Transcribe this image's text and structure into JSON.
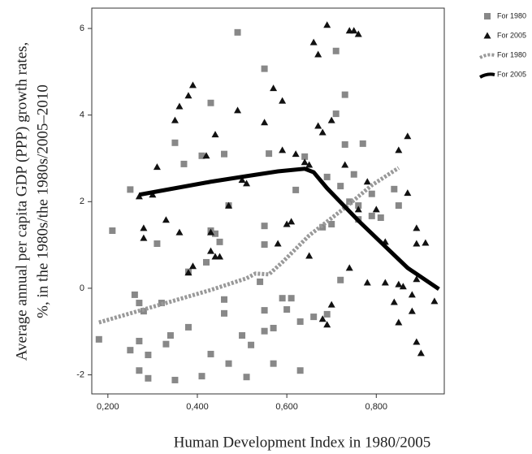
{
  "chart_data": {
    "type": "scatter",
    "x_label": "Human Development Index in 1980/2005",
    "y_label": [
      "Average annual per capita GDP (PPP) growth rates,",
      "%, in the 1980s/the 1980s/2005–2010"
    ],
    "xlim": [
      0.164,
      0.952
    ],
    "ylim": [
      -2.44,
      6.47
    ],
    "xticks": [
      {
        "value": 0.2,
        "label": "0,200"
      },
      {
        "value": 0.4,
        "label": "0,400"
      },
      {
        "value": 0.6,
        "label": "0,600"
      },
      {
        "value": 0.8,
        "label": "0,800"
      }
    ],
    "yticks": [
      -2,
      0,
      2,
      4,
      6
    ],
    "series": [
      {
        "name": "For 1980",
        "kind": "points",
        "marker": "square",
        "color": "#888888",
        "x": [
          0.18,
          0.21,
          0.25,
          0.26,
          0.25,
          0.27,
          0.27,
          0.27,
          0.28,
          0.29,
          0.29,
          0.31,
          0.32,
          0.33,
          0.34,
          0.35,
          0.35,
          0.37,
          0.38,
          0.38,
          0.41,
          0.41,
          0.42,
          0.43,
          0.43,
          0.43,
          0.44,
          0.45,
          0.46,
          0.46,
          0.46,
          0.47,
          0.47,
          0.5,
          0.49,
          0.51,
          0.52,
          0.54,
          0.55,
          0.55,
          0.55,
          0.55,
          0.55,
          0.56,
          0.57,
          0.57,
          0.59,
          0.6,
          0.61,
          0.62,
          0.63,
          0.63,
          0.64,
          0.66,
          0.69,
          0.69,
          0.71,
          0.71,
          0.72,
          0.72,
          0.73,
          0.73,
          0.74,
          0.75,
          0.76,
          0.76,
          0.77,
          0.79,
          0.79,
          0.81,
          0.84,
          0.85,
          0.68,
          0.7
        ],
        "values": [
          -1.18,
          1.33,
          2.28,
          -0.15,
          -1.43,
          -0.34,
          -1.22,
          -1.9,
          -0.53,
          -1.54,
          -2.08,
          1.03,
          -0.34,
          -1.29,
          -1.09,
          3.36,
          -2.12,
          2.87,
          0.38,
          -0.9,
          -2.03,
          3.06,
          0.6,
          1.33,
          4.28,
          -1.52,
          1.26,
          1.07,
          -0.58,
          -0.26,
          3.1,
          1.91,
          -1.74,
          -1.09,
          5.91,
          -2.05,
          -1.31,
          0.15,
          -0.99,
          5.07,
          1.44,
          -0.51,
          1.01,
          3.11,
          -0.92,
          -1.74,
          -0.23,
          -0.49,
          -0.23,
          2.27,
          -1.9,
          -0.77,
          3.04,
          -0.66,
          -0.6,
          2.57,
          4.03,
          5.48,
          2.36,
          0.19,
          4.47,
          3.32,
          2.0,
          2.63,
          1.91,
          1.59,
          3.34,
          2.18,
          1.67,
          1.63,
          2.29,
          1.91,
          1.41,
          1.48
        ]
      },
      {
        "name": "For 2005",
        "kind": "points",
        "marker": "triangle",
        "color": "#111111",
        "x": [
          0.27,
          0.28,
          0.28,
          0.3,
          0.31,
          0.33,
          0.35,
          0.36,
          0.36,
          0.38,
          0.38,
          0.39,
          0.39,
          0.42,
          0.43,
          0.43,
          0.44,
          0.44,
          0.45,
          0.47,
          0.49,
          0.5,
          0.51,
          0.55,
          0.57,
          0.58,
          0.59,
          0.59,
          0.6,
          0.61,
          0.62,
          0.64,
          0.65,
          0.65,
          0.66,
          0.67,
          0.67,
          0.68,
          0.68,
          0.69,
          0.69,
          0.7,
          0.7,
          0.73,
          0.74,
          0.74,
          0.75,
          0.76,
          0.76,
          0.78,
          0.78,
          0.8,
          0.82,
          0.82,
          0.84,
          0.85,
          0.85,
          0.85,
          0.86,
          0.87,
          0.87,
          0.88,
          0.88,
          0.89,
          0.89,
          0.89,
          0.89,
          0.9,
          0.91,
          0.93
        ],
        "values": [
          2.12,
          1.39,
          1.16,
          2.16,
          2.8,
          1.58,
          3.88,
          4.2,
          1.29,
          0.36,
          4.45,
          4.69,
          0.51,
          3.06,
          0.86,
          1.29,
          3.55,
          0.73,
          0.73,
          1.91,
          4.11,
          2.5,
          2.42,
          3.83,
          4.62,
          1.03,
          3.19,
          4.33,
          1.48,
          1.54,
          3.1,
          2.91,
          0.75,
          2.85,
          5.68,
          5.4,
          3.75,
          3.6,
          -0.71,
          -0.84,
          6.08,
          3.88,
          -0.38,
          2.85,
          0.47,
          5.95,
          5.95,
          5.87,
          1.82,
          2.46,
          0.13,
          1.82,
          0.13,
          1.07,
          -0.32,
          3.19,
          0.09,
          -0.79,
          0.04,
          3.51,
          2.2,
          -0.15,
          -0.53,
          1.03,
          0.21,
          -1.24,
          1.39,
          -1.5,
          1.05,
          -0.3
        ]
      },
      {
        "name": "For 1980",
        "kind": "line",
        "line_style": "dotted",
        "color": "#999999",
        "x": [
          0.18,
          0.33,
          0.43,
          0.51,
          0.53,
          0.56,
          0.59,
          0.65,
          0.73,
          0.79,
          0.85
        ],
        "values": [
          -0.79,
          -0.34,
          -0.04,
          0.23,
          0.34,
          0.32,
          0.6,
          1.22,
          1.86,
          2.38,
          2.78
        ]
      },
      {
        "name": "For 2005",
        "kind": "line",
        "line_style": "solid",
        "color": "#000000",
        "x": [
          0.27,
          0.43,
          0.51,
          0.58,
          0.64,
          0.66,
          0.69,
          0.76,
          0.87,
          0.94
        ],
        "values": [
          2.16,
          2.46,
          2.59,
          2.7,
          2.76,
          2.68,
          2.31,
          1.56,
          0.47,
          -0.02
        ]
      }
    ]
  }
}
